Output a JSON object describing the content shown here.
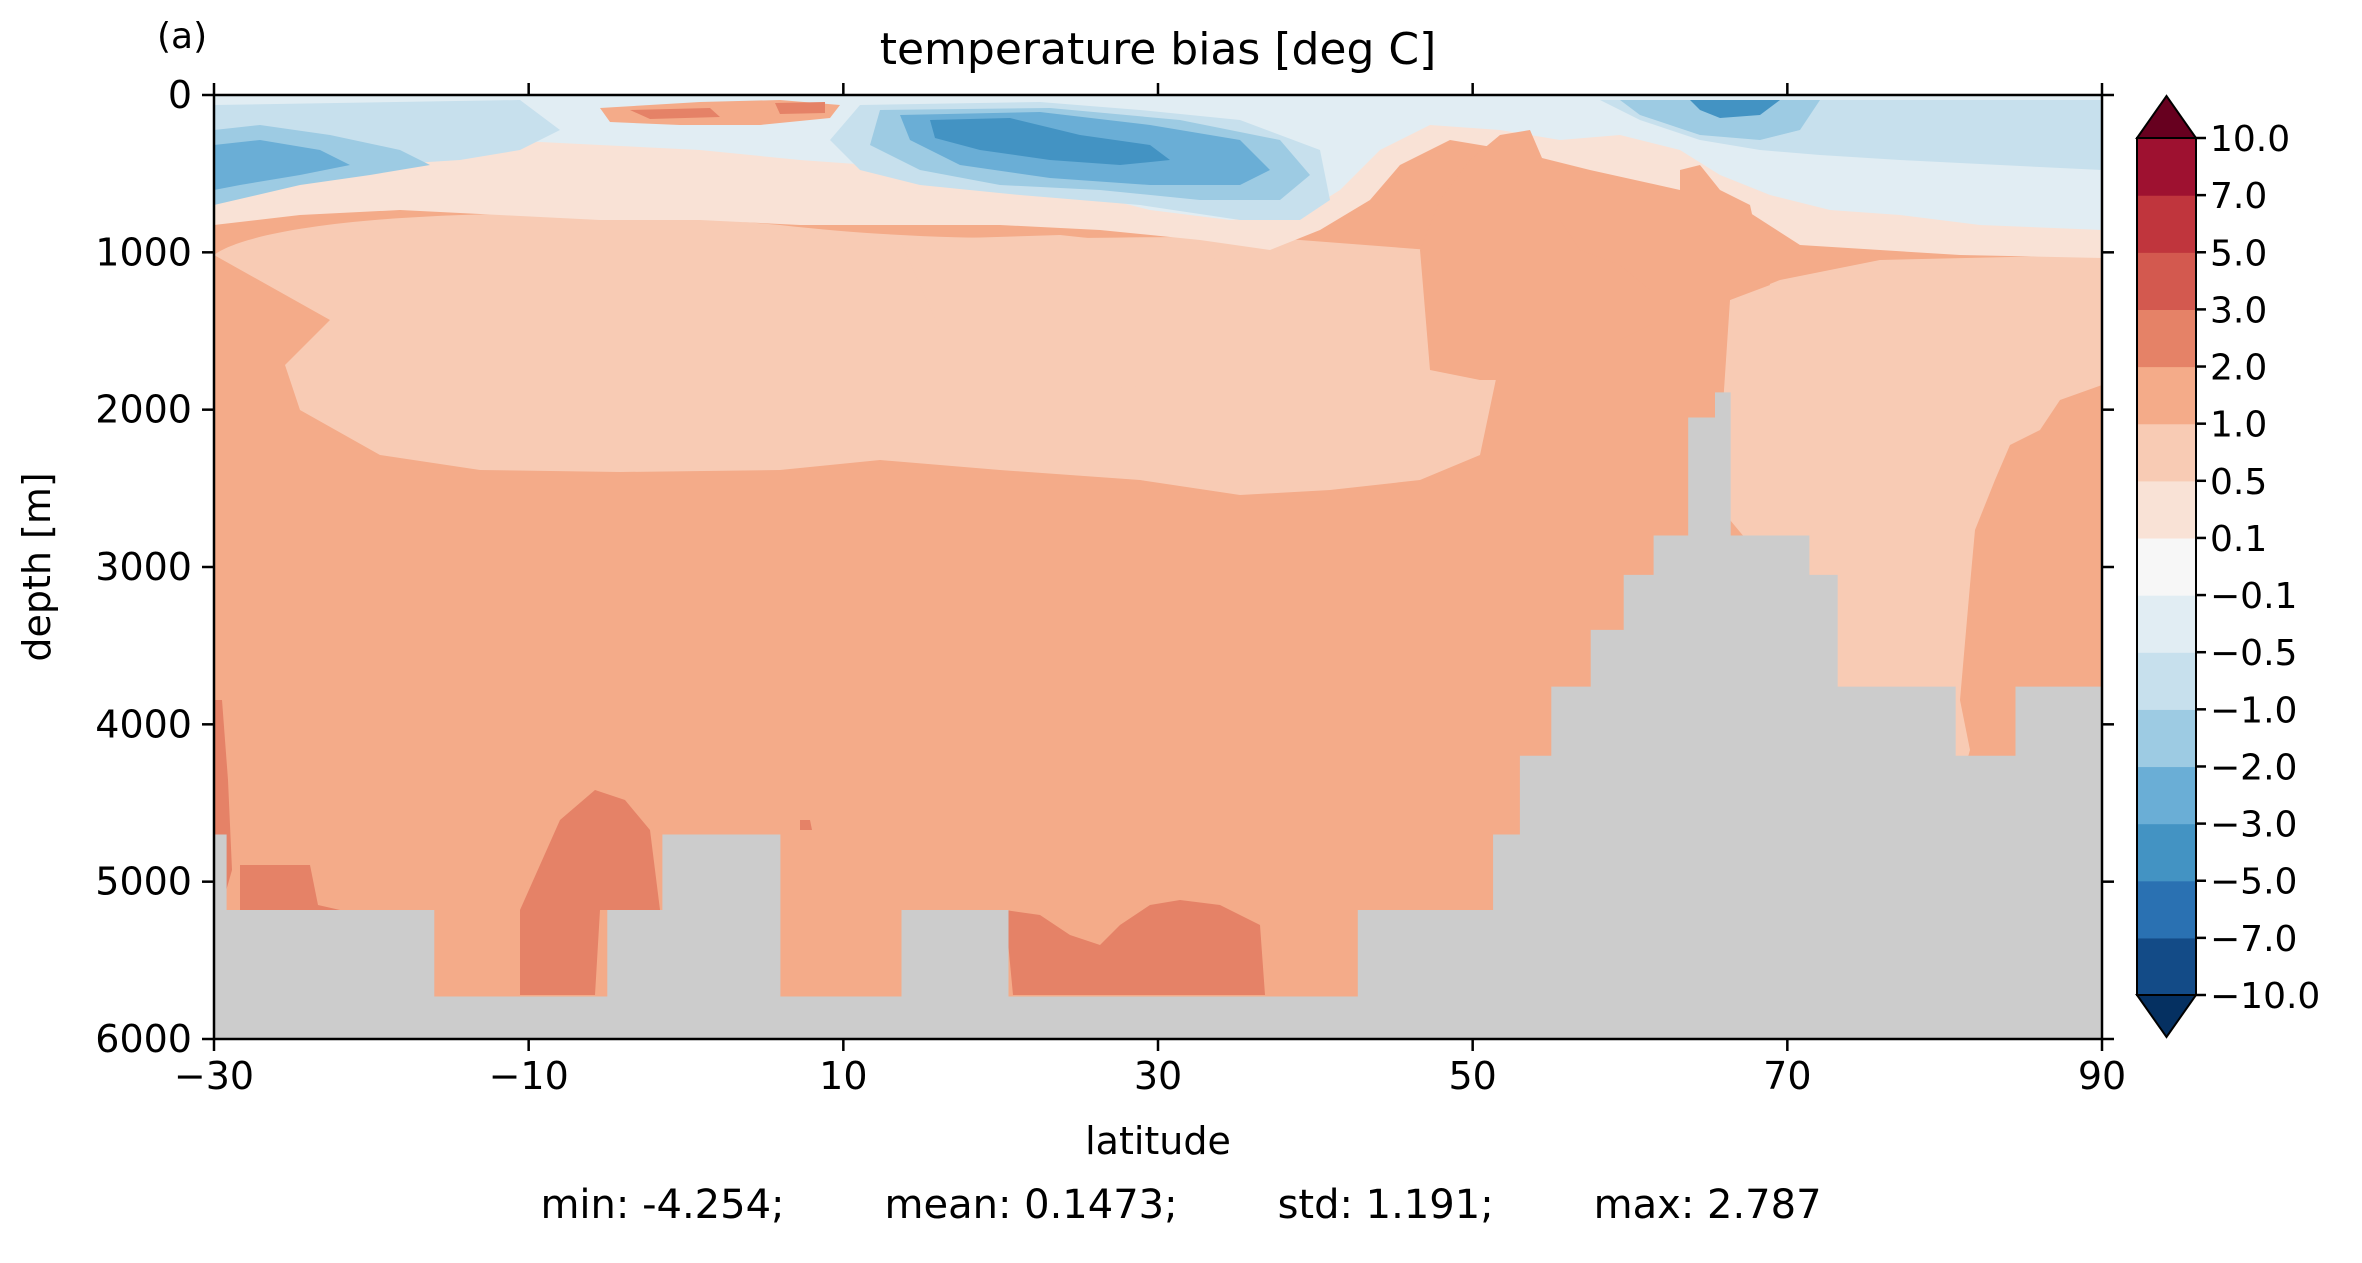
{
  "chart_data": {
    "type": "heatmap",
    "panel_label": "(a)",
    "title": "temperature bias [deg C]",
    "xlabel": "latitude",
    "ylabel": "depth [m]",
    "xlim": [
      -30,
      90
    ],
    "ylim": [
      6000,
      0
    ],
    "x_ticks": [
      -30,
      -10,
      10,
      30,
      50,
      70,
      90
    ],
    "x_tick_labels": [
      "−30",
      "−10",
      "10",
      "30",
      "50",
      "70",
      "90"
    ],
    "y_ticks": [
      0,
      1000,
      2000,
      3000,
      4000,
      5000,
      6000
    ],
    "y_tick_labels": [
      "0",
      "1000",
      "2000",
      "3000",
      "4000",
      "5000",
      "6000"
    ],
    "colorbar": {
      "levels": [
        -10.0,
        -7.0,
        -5.0,
        -3.0,
        -2.0,
        -1.0,
        -0.5,
        -0.1,
        0.1,
        0.5,
        1.0,
        2.0,
        3.0,
        5.0,
        7.0,
        10.0
      ],
      "labels": [
        "−10.0",
        "−7.0",
        "−5.0",
        "−3.0",
        "−2.0",
        "−1.0",
        "−0.5",
        "−0.1",
        "0.1",
        "0.5",
        "1.0",
        "2.0",
        "3.0",
        "5.0",
        "7.0",
        "10.0"
      ],
      "colors": [
        "#053061",
        "#134b87",
        "#2a71b2",
        "#4393c3",
        "#6aaed6",
        "#9dcbe3",
        "#c7e0ed",
        "#e1edf3",
        "#f7f7f7",
        "#f9e2d6",
        "#f8cbb4",
        "#f4ab89",
        "#e58267",
        "#d3594f",
        "#c0353d",
        "#9e1130",
        "#67001f"
      ],
      "extend": "both"
    },
    "background_levels": {
      "surface_mixed": "-1.0 to 0.5",
      "intermediate_water": "0.5 to 1.0",
      "deep_water": "1.0 to 2.0",
      "bottom_patches": "2.0 to 3.0",
      "land_mask_color": "#cccccc"
    },
    "bathymetry": {
      "lat": [
        -30,
        -29.2,
        -29.2,
        -26,
        -26,
        -20,
        -20,
        -16,
        -16,
        -11,
        -11,
        -5,
        -5,
        -1.5,
        -1.5,
        6,
        6,
        13.7,
        13.7,
        20.5,
        20.5,
        42.7,
        42.7,
        51.3,
        51.3,
        53,
        53,
        55,
        55,
        57.5,
        57.5,
        59.6,
        59.6,
        61.5,
        61.5,
        63.7,
        63.7,
        65.4,
        65.4,
        66.4,
        66.4,
        71.4,
        71.4,
        73.2,
        73.2,
        80.7,
        80.7,
        84.5,
        84.5,
        90
      ],
      "depth": [
        4700,
        4700,
        5180,
        5180,
        5180,
        5180,
        5180,
        5180,
        5730,
        5730,
        5730,
        5730,
        5180,
        5180,
        4700,
        4700,
        5730,
        5730,
        5180,
        5180,
        5730,
        5730,
        5180,
        5180,
        4700,
        4700,
        4200,
        4200,
        3760,
        3760,
        3400,
        3400,
        3050,
        3050,
        2800,
        2800,
        2050,
        2050,
        1890,
        1890,
        2800,
        2800,
        3050,
        3050,
        3760,
        3760,
        4200,
        4200,
        3760,
        3760
      ]
    },
    "stats": {
      "min_label": "min: -4.254;",
      "mean_label": "mean: 0.1473;",
      "std_label": "std: 1.191;",
      "max_label": "max: 2.787"
    }
  }
}
